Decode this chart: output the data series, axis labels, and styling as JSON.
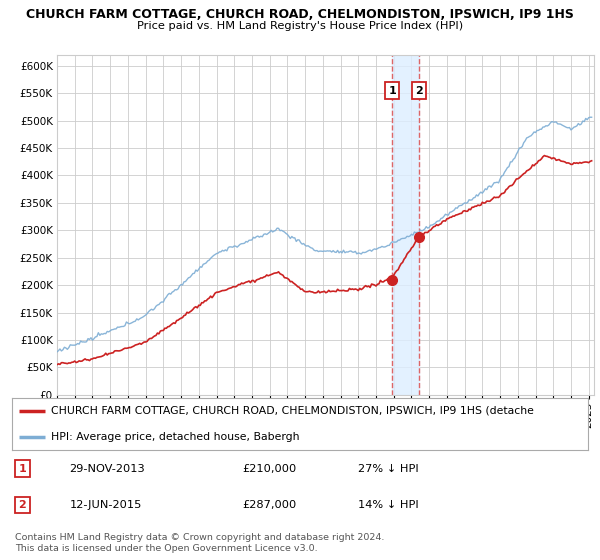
{
  "title1": "CHURCH FARM COTTAGE, CHURCH ROAD, CHELMONDISTON, IPSWICH, IP9 1HS",
  "title2": "Price paid vs. HM Land Registry's House Price Index (HPI)",
  "xlim_start": 1995.0,
  "xlim_end": 2025.3,
  "ylim_min": 0,
  "ylim_max": 620000,
  "yticks": [
    0,
    50000,
    100000,
    150000,
    200000,
    250000,
    300000,
    350000,
    400000,
    450000,
    500000,
    550000,
    600000
  ],
  "ytick_labels": [
    "£0",
    "£50K",
    "£100K",
    "£150K",
    "£200K",
    "£250K",
    "£300K",
    "£350K",
    "£400K",
    "£450K",
    "£500K",
    "£550K",
    "£600K"
  ],
  "sale1_date": 2013.91,
  "sale1_price": 210000,
  "sale1_label": "29-NOV-2013",
  "sale1_amount": "£210,000",
  "sale1_hpi": "27% ↓ HPI",
  "sale2_date": 2015.44,
  "sale2_price": 287000,
  "sale2_label": "12-JUN-2015",
  "sale2_amount": "£287,000",
  "sale2_hpi": "14% ↓ HPI",
  "legend_line1": "CHURCH FARM COTTAGE, CHURCH ROAD, CHELMONDISTON, IPSWICH, IP9 1HS (detache",
  "legend_line2": "HPI: Average price, detached house, Babergh",
  "footer": "Contains HM Land Registry data © Crown copyright and database right 2024.\nThis data is licensed under the Open Government Licence v3.0.",
  "line_color_red": "#cc2222",
  "line_color_blue": "#7dadd4",
  "shade_color": "#ddeeff",
  "vline_color": "#dd6666",
  "bg_color": "#ffffff",
  "grid_color": "#cccccc"
}
